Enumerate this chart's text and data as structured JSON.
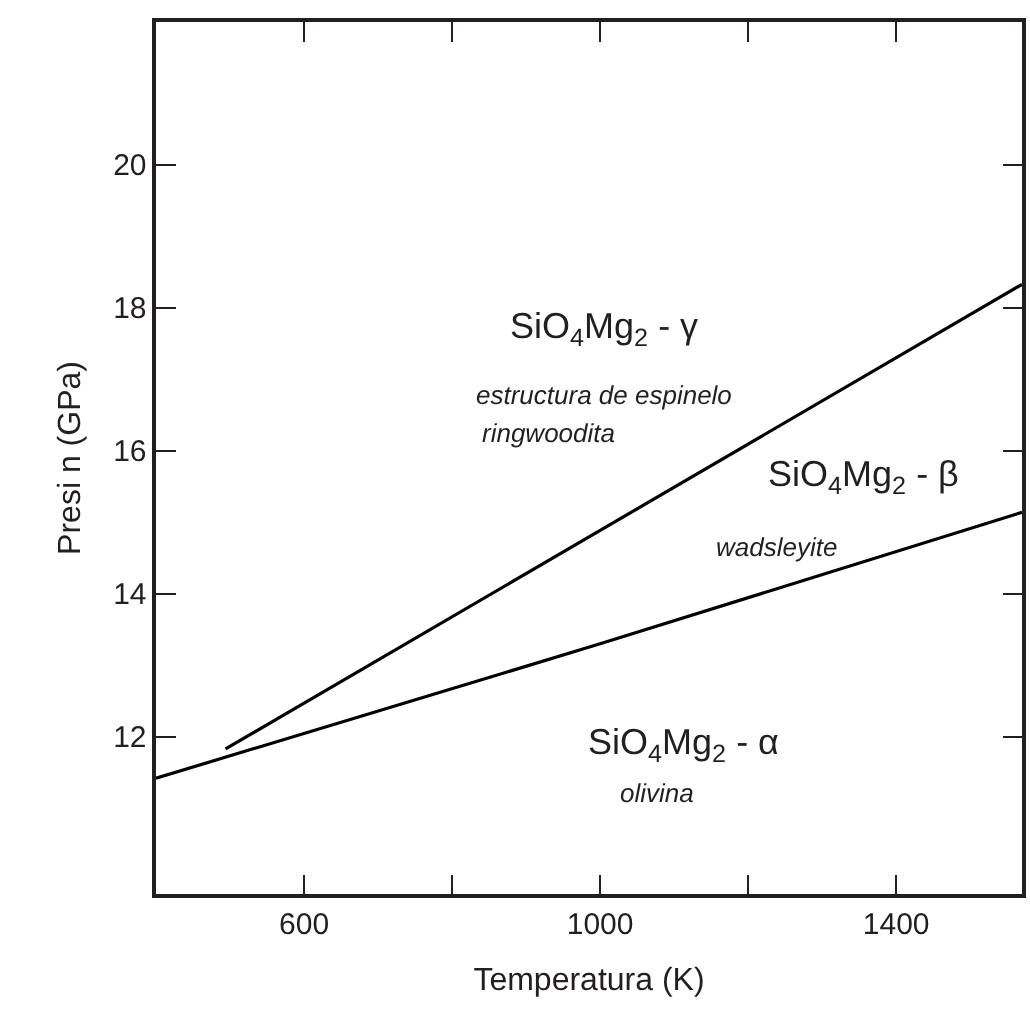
{
  "chart_data": {
    "type": "line",
    "xlabel": "Temperatura (K)",
    "ylabel": "Presi n (GPa)",
    "series": [
      {
        "color": "#000000",
        "x": [
          494,
          1570
        ],
        "values": [
          11.83,
          18.33
        ]
      },
      {
        "color": "#000000",
        "x": [
          400,
          1000,
          1570
        ],
        "values": [
          11.42,
          13.3,
          15.14
        ]
      }
    ],
    "xlim": [
      400,
      1570
    ],
    "xticks": [
      600,
      {
        "value": 800,
        "label": null
      },
      1000,
      {
        "value": 1200,
        "label": null
      },
      1400
    ],
    "ylim": [
      9.8,
      22
    ],
    "yticks": [
      12,
      14,
      16,
      18,
      20
    ],
    "annotations": [
      "SiO$_{4}$Mg$_{2}$ - γ",
      "estructura de espinelo",
      "ringwoodita",
      "SiO$_{4}$Mg$_{2}$ - β",
      "wadsleyite",
      "SiO$_{4}$Mg$_{2}$ - α",
      "olivina"
    ],
    "marker": "none",
    "line_style": "solid"
  }
}
